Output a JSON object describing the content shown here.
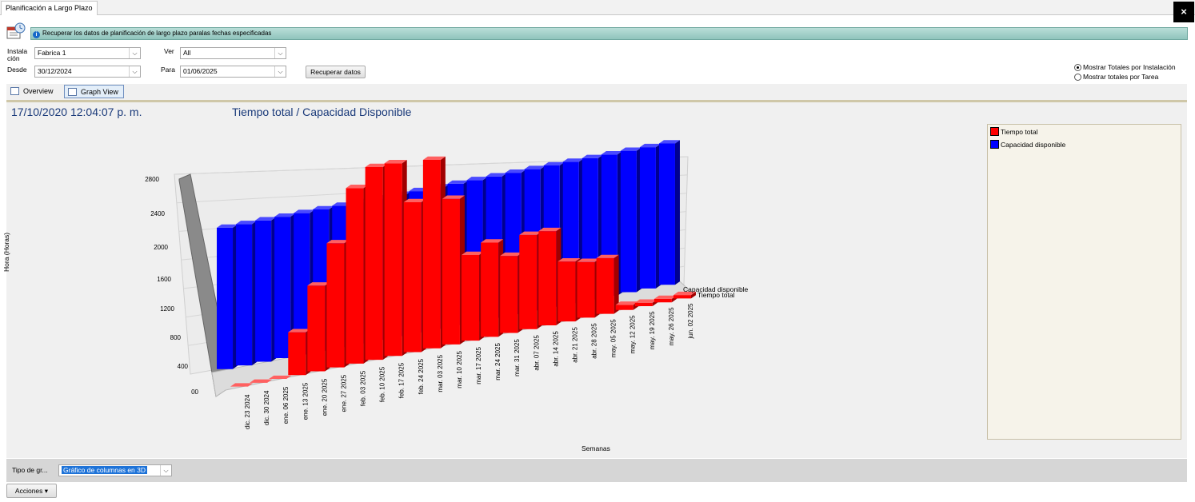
{
  "window": {
    "tab_title": "Planificación a Largo Plazo",
    "close_label": "×"
  },
  "info": {
    "message": "Recuperar los datos de planificación de largo plazo paralas fechas especificadas"
  },
  "filters": {
    "instalacion_label": "Instala ción",
    "instalacion_value": "Fabrica 1",
    "ver_label": "Ver",
    "ver_value": "All",
    "desde_label": "Desde",
    "desde_value": "30/12/2024",
    "para_label": "Para",
    "para_value": "01/06/2025",
    "recuperar_label": "Recuperar datos"
  },
  "totals": {
    "option_instalacion": "Mostrar Totales por Instalación",
    "option_tarea": "Mostrar totales por Tarea",
    "selected": "instalacion"
  },
  "view_tabs": {
    "overview": "Overview",
    "graph": "Graph View",
    "active": "graph"
  },
  "chart_header": {
    "timestamp": "17/10/2020 12:04:07 p. m.",
    "title": "Tiempo total / Capacidad Disponible"
  },
  "legend": {
    "items": [
      {
        "label": "Tiempo total",
        "color": "#ff0000"
      },
      {
        "label": "Capacidad disponible",
        "color": "#0000ff"
      }
    ]
  },
  "chart_data": {
    "type": "bar",
    "title": "Tiempo total / Capacidad Disponible",
    "xlabel": "Semanas",
    "ylabel": "Hora (Horas)",
    "ylim": [
      0,
      2800
    ],
    "yticks": [
      "00",
      "400",
      "800",
      "1200",
      "1600",
      "2000",
      "2400",
      "2800"
    ],
    "categories": [
      "dic. 23 2024",
      "dic. 30 2024",
      "ene. 06 2025",
      "ene. 13 2025",
      "ene. 20 2025",
      "ene. 27 2025",
      "feb. 03 2025",
      "feb. 10 2025",
      "feb. 17 2025",
      "feb. 24 2025",
      "mar. 03 2025",
      "mar. 10 2025",
      "mar. 17 2025",
      "mar. 24 2025",
      "mar. 31 2025",
      "abr. 07 2025",
      "abr. 14 2025",
      "abr. 21 2025",
      "abr. 28 2025",
      "may. 05 2025",
      "may. 12 2025",
      "may. 19 2025",
      "may. 26 2025",
      "jun. 02 2025"
    ],
    "series": [
      {
        "name": "Tiempo total",
        "color": "#ff0000",
        "values": [
          0,
          0,
          0,
          500,
          1000,
          1450,
          2050,
          2250,
          2250,
          1750,
          2200,
          1700,
          1000,
          1100,
          900,
          1100,
          1100,
          700,
          650,
          650,
          60,
          40,
          40,
          40
        ]
      },
      {
        "name": "Capacidad disponible",
        "color": "#0000ff",
        "values": [
          1650,
          1650,
          1650,
          1650,
          1650,
          1650,
          1650,
          1650,
          1650,
          1650,
          1650,
          1650,
          1650,
          1650,
          1650,
          1650,
          1650,
          1650,
          1650,
          1650,
          1650,
          1650,
          1650,
          1650
        ]
      }
    ],
    "series_labels": [
      "Capacidad disponible",
      "Tiempo total"
    ],
    "grid": true,
    "legend_position": "right"
  },
  "bottom": {
    "chart_type_label": "Tipo de gr...",
    "chart_type_value": "Gráfico de columnas en 3D",
    "actions_label": "Acciones"
  }
}
